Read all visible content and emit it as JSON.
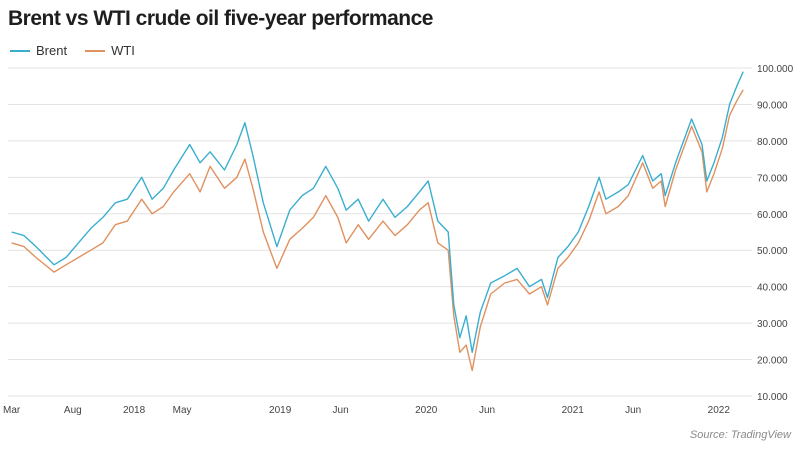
{
  "chart_data": {
    "type": "line",
    "title": "Brent vs WTI crude oil five-year performance",
    "source": "Source: TradingView",
    "x_ticks": [
      "Mar",
      "Aug",
      "2018",
      "May",
      "2019",
      "Jun",
      "2020",
      "Jun",
      "2021",
      "Jun",
      "2022"
    ],
    "x_tick_dates": [
      "2017-03-01",
      "2017-08-01",
      "2018-01-01",
      "2018-05-01",
      "2019-01-01",
      "2019-06-01",
      "2020-01-01",
      "2020-06-01",
      "2021-01-01",
      "2021-06-01",
      "2022-01-01"
    ],
    "x_range": [
      "2017-02-20",
      "2022-03-25"
    ],
    "y_ticks": [
      "10.000",
      "20.000",
      "30.000",
      "40.000",
      "50.000",
      "60.000",
      "70.000",
      "80.000",
      "90.000",
      "100.000"
    ],
    "ylim": [
      10,
      100
    ],
    "y_axis_side": "right",
    "grid": "horizontal",
    "legend_position": "top-left",
    "series": [
      {
        "name": "Brent",
        "color": "#3aaecf",
        "points": [
          [
            "2017-03-01",
            55
          ],
          [
            "2017-04-01",
            54
          ],
          [
            "2017-05-01",
            51
          ],
          [
            "2017-06-15",
            46
          ],
          [
            "2017-07-15",
            48
          ],
          [
            "2017-08-15",
            52
          ],
          [
            "2017-09-15",
            56
          ],
          [
            "2017-10-15",
            59
          ],
          [
            "2017-11-15",
            63
          ],
          [
            "2017-12-15",
            64
          ],
          [
            "2018-01-20",
            70
          ],
          [
            "2018-02-15",
            64
          ],
          [
            "2018-03-15",
            67
          ],
          [
            "2018-04-10",
            72
          ],
          [
            "2018-05-20",
            79
          ],
          [
            "2018-06-15",
            74
          ],
          [
            "2018-07-10",
            77
          ],
          [
            "2018-08-15",
            72
          ],
          [
            "2018-09-15",
            79
          ],
          [
            "2018-10-05",
            85
          ],
          [
            "2018-10-25",
            76
          ],
          [
            "2018-11-20",
            63
          ],
          [
            "2018-12-24",
            51
          ],
          [
            "2019-01-25",
            61
          ],
          [
            "2019-02-25",
            65
          ],
          [
            "2019-03-25",
            67
          ],
          [
            "2019-04-25",
            73
          ],
          [
            "2019-05-25",
            67
          ],
          [
            "2019-06-15",
            61
          ],
          [
            "2019-07-15",
            64
          ],
          [
            "2019-08-10",
            58
          ],
          [
            "2019-09-15",
            64
          ],
          [
            "2019-10-15",
            59
          ],
          [
            "2019-11-15",
            62
          ],
          [
            "2019-12-15",
            66
          ],
          [
            "2020-01-06",
            69
          ],
          [
            "2020-01-30",
            58
          ],
          [
            "2020-02-25",
            55
          ],
          [
            "2020-03-10",
            35
          ],
          [
            "2020-03-25",
            26
          ],
          [
            "2020-04-10",
            32
          ],
          [
            "2020-04-25",
            22
          ],
          [
            "2020-05-15",
            33
          ],
          [
            "2020-06-10",
            41
          ],
          [
            "2020-07-15",
            43
          ],
          [
            "2020-08-15",
            45
          ],
          [
            "2020-09-15",
            40
          ],
          [
            "2020-10-15",
            42
          ],
          [
            "2020-10-30",
            37
          ],
          [
            "2020-11-25",
            48
          ],
          [
            "2020-12-20",
            51
          ],
          [
            "2021-01-15",
            55
          ],
          [
            "2021-02-10",
            62
          ],
          [
            "2021-03-08",
            70
          ],
          [
            "2021-03-25",
            64
          ],
          [
            "2021-04-25",
            66
          ],
          [
            "2021-05-20",
            68
          ],
          [
            "2021-06-25",
            76
          ],
          [
            "2021-07-20",
            69
          ],
          [
            "2021-08-10",
            71
          ],
          [
            "2021-08-20",
            65
          ],
          [
            "2021-09-15",
            74
          ],
          [
            "2021-10-25",
            86
          ],
          [
            "2021-11-20",
            79
          ],
          [
            "2021-12-02",
            69
          ],
          [
            "2021-12-20",
            74
          ],
          [
            "2022-01-10",
            81
          ],
          [
            "2022-01-28",
            90
          ],
          [
            "2022-02-15",
            95
          ],
          [
            "2022-03-03",
            99
          ]
        ]
      },
      {
        "name": "WTI",
        "color": "#e09160",
        "points": [
          [
            "2017-03-01",
            52
          ],
          [
            "2017-04-01",
            51
          ],
          [
            "2017-05-01",
            48
          ],
          [
            "2017-06-15",
            44
          ],
          [
            "2017-07-15",
            46
          ],
          [
            "2017-08-15",
            48
          ],
          [
            "2017-09-15",
            50
          ],
          [
            "2017-10-15",
            52
          ],
          [
            "2017-11-15",
            57
          ],
          [
            "2017-12-15",
            58
          ],
          [
            "2018-01-20",
            64
          ],
          [
            "2018-02-15",
            60
          ],
          [
            "2018-03-15",
            62
          ],
          [
            "2018-04-10",
            66
          ],
          [
            "2018-05-20",
            71
          ],
          [
            "2018-06-15",
            66
          ],
          [
            "2018-07-10",
            73
          ],
          [
            "2018-08-15",
            67
          ],
          [
            "2018-09-15",
            70
          ],
          [
            "2018-10-05",
            75
          ],
          [
            "2018-10-25",
            67
          ],
          [
            "2018-11-20",
            55
          ],
          [
            "2018-12-24",
            45
          ],
          [
            "2019-01-25",
            53
          ],
          [
            "2019-02-25",
            56
          ],
          [
            "2019-03-25",
            59
          ],
          [
            "2019-04-25",
            65
          ],
          [
            "2019-05-25",
            59
          ],
          [
            "2019-06-15",
            52
          ],
          [
            "2019-07-15",
            57
          ],
          [
            "2019-08-10",
            53
          ],
          [
            "2019-09-15",
            58
          ],
          [
            "2019-10-15",
            54
          ],
          [
            "2019-11-15",
            57
          ],
          [
            "2019-12-15",
            61
          ],
          [
            "2020-01-06",
            63
          ],
          [
            "2020-01-30",
            52
          ],
          [
            "2020-02-25",
            50
          ],
          [
            "2020-03-10",
            32
          ],
          [
            "2020-03-25",
            22
          ],
          [
            "2020-04-10",
            24
          ],
          [
            "2020-04-25",
            17
          ],
          [
            "2020-05-15",
            29
          ],
          [
            "2020-06-10",
            38
          ],
          [
            "2020-07-15",
            41
          ],
          [
            "2020-08-15",
            42
          ],
          [
            "2020-09-15",
            38
          ],
          [
            "2020-10-15",
            40
          ],
          [
            "2020-10-30",
            35
          ],
          [
            "2020-11-25",
            45
          ],
          [
            "2020-12-20",
            48
          ],
          [
            "2021-01-15",
            52
          ],
          [
            "2021-02-10",
            58
          ],
          [
            "2021-03-08",
            66
          ],
          [
            "2021-03-25",
            60
          ],
          [
            "2021-04-25",
            62
          ],
          [
            "2021-05-20",
            65
          ],
          [
            "2021-06-25",
            74
          ],
          [
            "2021-07-20",
            67
          ],
          [
            "2021-08-10",
            69
          ],
          [
            "2021-08-20",
            62
          ],
          [
            "2021-09-15",
            72
          ],
          [
            "2021-10-25",
            84
          ],
          [
            "2021-11-20",
            77
          ],
          [
            "2021-12-02",
            66
          ],
          [
            "2021-12-20",
            71
          ],
          [
            "2022-01-10",
            78
          ],
          [
            "2022-01-28",
            87
          ],
          [
            "2022-02-15",
            91
          ],
          [
            "2022-03-03",
            94
          ]
        ]
      }
    ]
  }
}
